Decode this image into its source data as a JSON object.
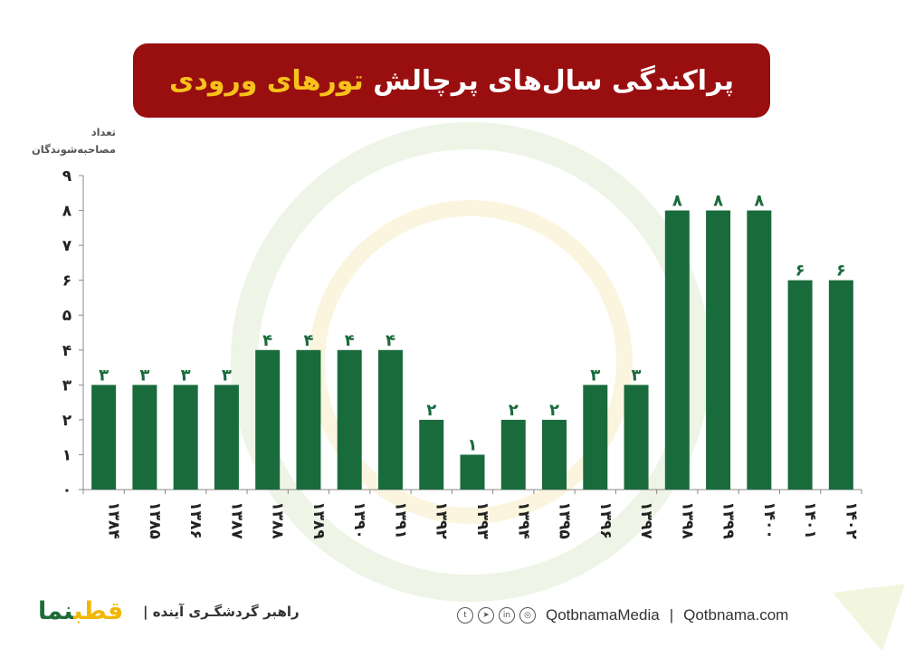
{
  "title": {
    "part1": "پراکندگی سال‌های پرچالش",
    "part2": "تورهای ورودی"
  },
  "footer": {
    "logo_part1": "قطب",
    "logo_part2": "نما",
    "tagline": "راهبر گردشگـری آینده |",
    "media": "QotbnamaMedia",
    "divider": "|",
    "site": "Qotbnama.com",
    "social_icons": [
      "twitter-icon",
      "telegram-icon",
      "linkedin-icon",
      "instagram-icon"
    ]
  },
  "colors": {
    "bar": "#1a6b3c",
    "label": "#1a6b3c",
    "banner": "#990f10",
    "accent": "#f6c21b"
  },
  "chart_data": {
    "type": "bar",
    "ylabel": "تعداد مصاحبه‌شوندگان",
    "ylim": [
      0,
      9
    ],
    "yticks": [
      "۰",
      "۱",
      "۲",
      "۳",
      "۴",
      "۵",
      "۶",
      "۷",
      "۸",
      "۹"
    ],
    "categories": [
      "۱۳۸۴",
      "۱۳۸۵",
      "۱۳۸۶",
      "۱۳۸۷",
      "۱۳۸۸",
      "۱۳۸۹",
      "۱۳۹۰",
      "۱۳۹۱",
      "۱۳۹۲",
      "۱۳۹۳",
      "۱۳۹۴",
      "۱۳۹۵",
      "۱۳۹۶",
      "۱۳۹۷",
      "۱۳۹۸",
      "۱۳۹۹",
      "۱۴۰۰",
      "۱۴۰۱",
      "۱۴۰۲"
    ],
    "values": [
      3,
      3,
      3,
      3,
      4,
      4,
      4,
      4,
      2,
      1,
      2,
      2,
      3,
      3,
      8,
      8,
      8,
      6,
      6
    ],
    "value_labels": [
      "۳",
      "۳",
      "۳",
      "۳",
      "۴",
      "۴",
      "۴",
      "۴",
      "۲",
      "۱",
      "۲",
      "۲",
      "۳",
      "۳",
      "۸",
      "۸",
      "۸",
      "۶",
      "۶"
    ]
  }
}
